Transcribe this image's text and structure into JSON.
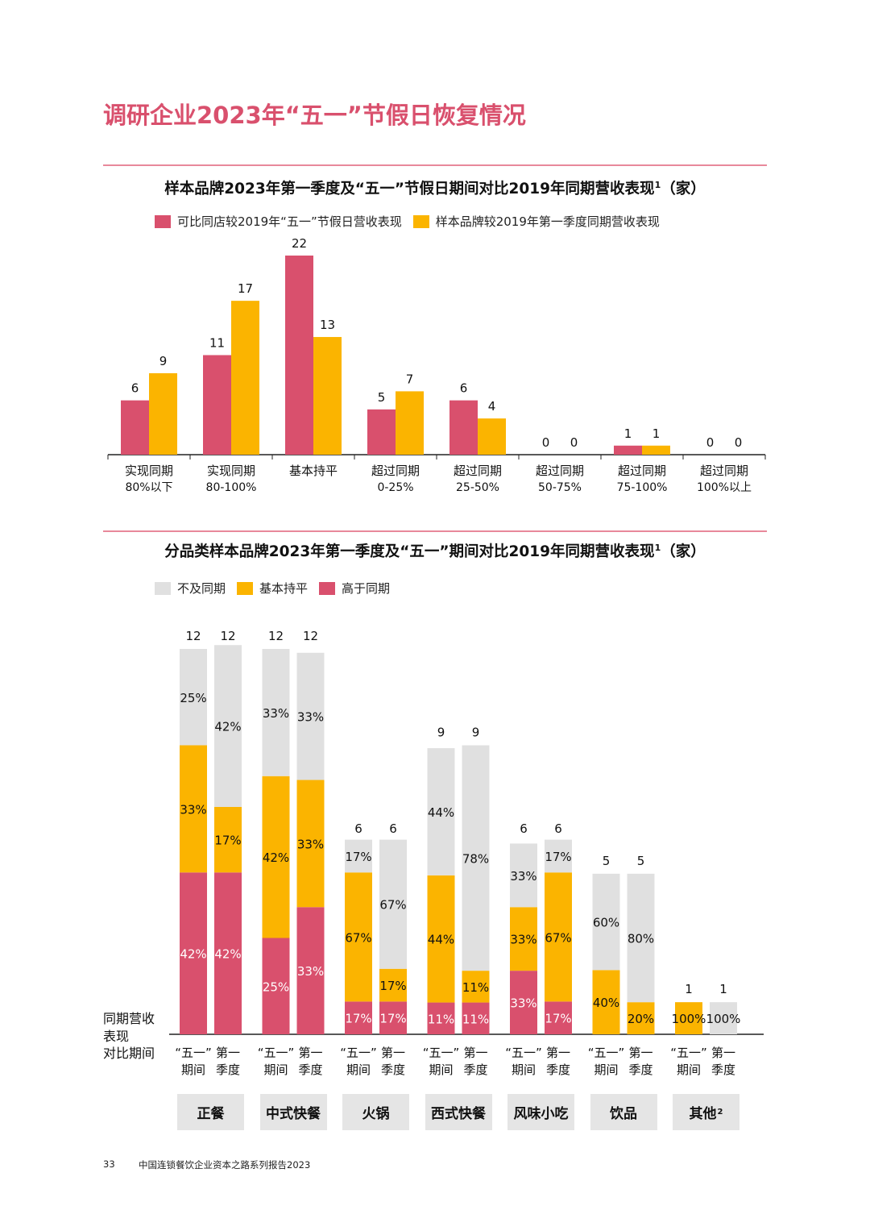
{
  "title": "调研企业2023年“五一”节假日恢复情况",
  "chart_data": [
    {
      "type": "bar",
      "title": "样本品牌2023年第一季度及“五一”节假日期间对比2019年同期营收表现",
      "title_sup": "1",
      "title_suffix": "（家）",
      "categories": [
        [
          "实现同期",
          "80%以下"
        ],
        [
          "实现同期",
          "80-100%"
        ],
        [
          "基本持平",
          ""
        ],
        [
          "超过同期",
          "0-25%"
        ],
        [
          "超过同期",
          "25-50%"
        ],
        [
          "超过同期",
          "50-75%"
        ],
        [
          "超过同期",
          "75-100%"
        ],
        [
          "超过同期",
          "100%以上"
        ]
      ],
      "series": [
        {
          "name": "可比同店较2019年“五一”节假日营收表现",
          "color": "#d9506d",
          "values": [
            6,
            11,
            22,
            5,
            6,
            0,
            1,
            0
          ]
        },
        {
          "name": "样本品牌较2019年第一季度同期营收表现",
          "color": "#fbb400",
          "values": [
            9,
            17,
            13,
            7,
            4,
            0,
            1,
            0
          ]
        }
      ],
      "ylim": [
        0,
        22
      ]
    },
    {
      "type": "stacked-bar",
      "title": "分品类样本品牌2023年第一季度及“五一”期间对比2019年同期营收表现",
      "title_sup": "1",
      "title_suffix": "（家）",
      "legend": [
        {
          "name": "不及同期",
          "color": "#e0e0e0"
        },
        {
          "name": "基本持平",
          "color": "#fbb400"
        },
        {
          "name": "高于同期",
          "color": "#d9506d"
        }
      ],
      "axis_note": [
        "同期营收",
        "表现",
        "对比期间"
      ],
      "period_labels": [
        [
          "“五一”",
          "期间"
        ],
        [
          "第一",
          "季度"
        ]
      ],
      "groups": [
        {
          "name": "正餐",
          "sup": "",
          "bars": [
            {
              "total": 12,
              "segments": [
                [
                  "高于同期",
                  42,
                  "42%"
                ],
                [
                  "基本持平",
                  33,
                  "33%"
                ],
                [
                  "不及同期",
                  25,
                  "25%"
                ]
              ]
            },
            {
              "total": 12,
              "segments": [
                [
                  "高于同期",
                  42,
                  "42%"
                ],
                [
                  "基本持平",
                  17,
                  "17%"
                ],
                [
                  "不及同期",
                  42,
                  "42%"
                ]
              ]
            }
          ]
        },
        {
          "name": "中式快餐",
          "sup": "",
          "bars": [
            {
              "total": 12,
              "segments": [
                [
                  "高于同期",
                  25,
                  "25%"
                ],
                [
                  "基本持平",
                  42,
                  "42%"
                ],
                [
                  "不及同期",
                  33,
                  "33%"
                ]
              ]
            },
            {
              "total": 12,
              "segments": [
                [
                  "高于同期",
                  33,
                  "33%"
                ],
                [
                  "基本持平",
                  33,
                  "33%"
                ],
                [
                  "不及同期",
                  33,
                  "33%"
                ]
              ]
            }
          ]
        },
        {
          "name": "火锅",
          "sup": "",
          "bars": [
            {
              "total": 6,
              "segments": [
                [
                  "高于同期",
                  17,
                  "17%"
                ],
                [
                  "基本持平",
                  67,
                  "67%"
                ],
                [
                  "不及同期",
                  17,
                  "17%"
                ]
              ]
            },
            {
              "total": 6,
              "segments": [
                [
                  "高于同期",
                  17,
                  "17%"
                ],
                [
                  "基本持平",
                  17,
                  "17%"
                ],
                [
                  "不及同期",
                  67,
                  "67%"
                ]
              ]
            }
          ]
        },
        {
          "name": "西式快餐",
          "sup": "",
          "bars": [
            {
              "total": 9,
              "segments": [
                [
                  "高于同期",
                  11,
                  "11%"
                ],
                [
                  "基本持平",
                  44,
                  "44%"
                ],
                [
                  "不及同期",
                  44,
                  "44%"
                ]
              ]
            },
            {
              "total": 9,
              "segments": [
                [
                  "高于同期",
                  11,
                  "11%"
                ],
                [
                  "基本持平",
                  11,
                  "11%"
                ],
                [
                  "不及同期",
                  78,
                  "78%"
                ]
              ]
            }
          ]
        },
        {
          "name": "风味小吃",
          "sup": "",
          "bars": [
            {
              "total": 6,
              "segments": [
                [
                  "高于同期",
                  33,
                  "33%"
                ],
                [
                  "基本持平",
                  33,
                  "33%"
                ],
                [
                  "不及同期",
                  33,
                  "33%"
                ]
              ]
            },
            {
              "total": 6,
              "segments": [
                [
                  "高于同期",
                  17,
                  "17%"
                ],
                [
                  "基本持平",
                  67,
                  "67%"
                ],
                [
                  "不及同期",
                  17,
                  "17%"
                ]
              ]
            }
          ]
        },
        {
          "name": "饮品",
          "sup": "",
          "bars": [
            {
              "total": 5,
              "segments": [
                [
                  "高于同期",
                  0,
                  ""
                ],
                [
                  "基本持平",
                  40,
                  "40%"
                ],
                [
                  "不及同期",
                  60,
                  "60%"
                ]
              ]
            },
            {
              "total": 5,
              "segments": [
                [
                  "高于同期",
                  0,
                  ""
                ],
                [
                  "基本持平",
                  20,
                  "20%"
                ],
                [
                  "不及同期",
                  80,
                  "80%"
                ]
              ]
            }
          ]
        },
        {
          "name": "其他",
          "sup": "2",
          "bars": [
            {
              "total": 1,
              "segments": [
                [
                  "高于同期",
                  0,
                  ""
                ],
                [
                  "基本持平",
                  100,
                  "100%"
                ],
                [
                  "不及同期",
                  0,
                  ""
                ]
              ]
            },
            {
              "total": 1,
              "segments": [
                [
                  "高于同期",
                  0,
                  ""
                ],
                [
                  "基本持平",
                  0,
                  ""
                ],
                [
                  "不及同期",
                  100,
                  "100%"
                ]
              ]
            }
          ]
        }
      ],
      "ylim": [
        0,
        12
      ]
    }
  ],
  "footer": {
    "page_number": "33",
    "report_name": "中国连锁餐饮企业资本之路系列报告2023"
  }
}
